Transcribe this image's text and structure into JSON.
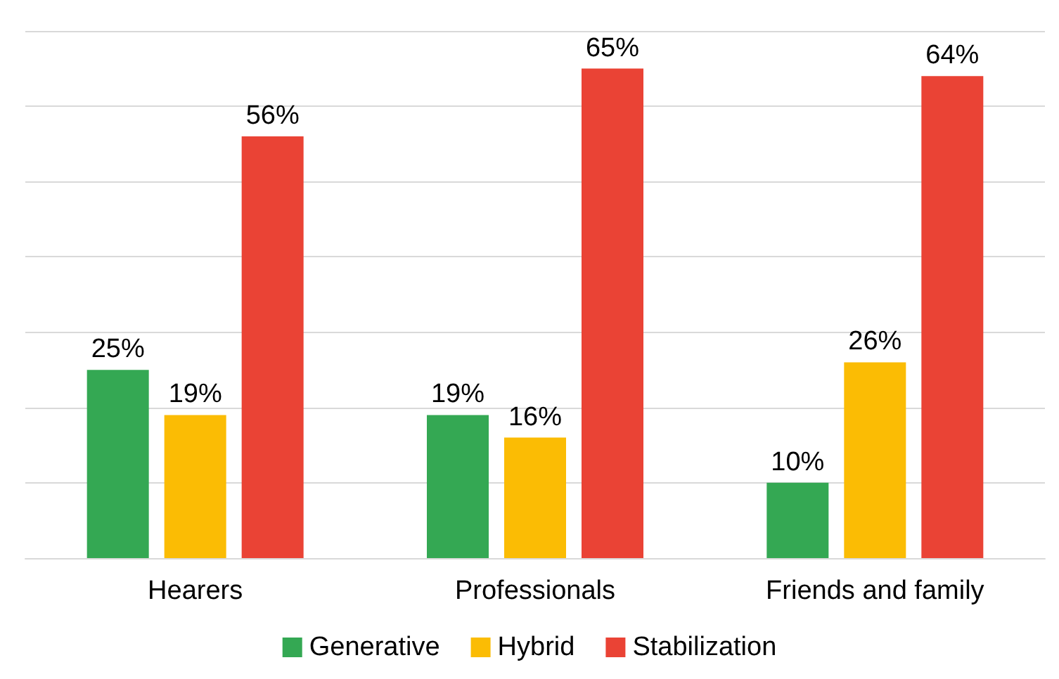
{
  "chart_data": {
    "type": "bar",
    "categories": [
      "Hearers",
      "Professionals",
      "Friends and family"
    ],
    "series": [
      {
        "name": "Generative",
        "color": "#34a853",
        "values": [
          25,
          19,
          10
        ],
        "value_labels": [
          "25%",
          "19%",
          "10%"
        ]
      },
      {
        "name": "Hybrid",
        "color": "#fbbc04",
        "values": [
          19,
          16,
          26
        ],
        "value_labels": [
          "19%",
          "16%",
          "26%"
        ]
      },
      {
        "name": "Stabilization",
        "color": "#ea4335",
        "values": [
          56,
          65,
          64
        ],
        "value_labels": [
          "56%",
          "65%",
          "64%"
        ]
      }
    ],
    "ylim": [
      0,
      70
    ],
    "yticks": [
      {
        "value": 0,
        "label": null
      },
      {
        "value": 10,
        "label": null
      },
      {
        "value": 20,
        "label": null
      },
      {
        "value": 30,
        "label": null
      },
      {
        "value": 40,
        "label": null
      },
      {
        "value": 50,
        "label": null
      },
      {
        "value": 60,
        "label": null
      },
      {
        "value": 70,
        "label": null
      }
    ],
    "grid": "y",
    "legend": "bottom"
  }
}
